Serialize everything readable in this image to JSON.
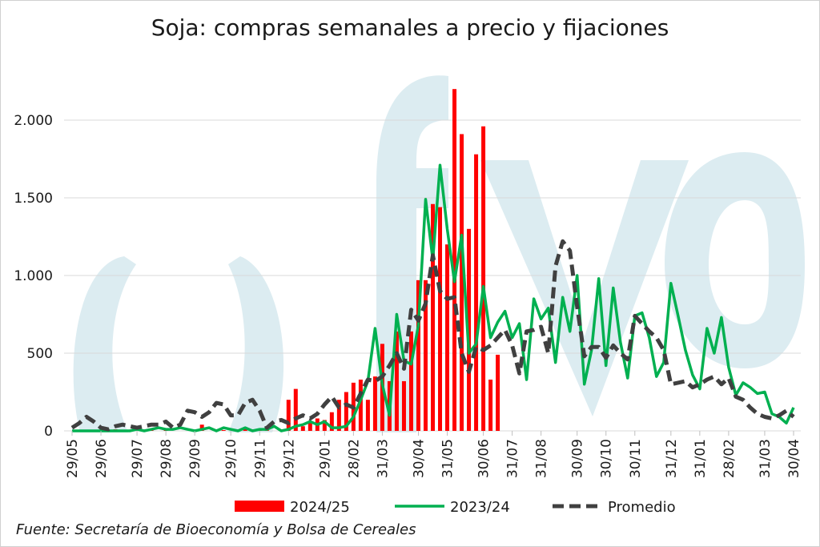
{
  "chart_data": {
    "type": "combo",
    "title": "Soja: compras semanales a precio y fijaciones",
    "source": "Fuente: Secretaría de Bioeconomía y Bolsa de Cereales",
    "categories": [
      "29/05",
      null,
      null,
      null,
      "29/06",
      null,
      null,
      null,
      null,
      "29/07",
      null,
      null,
      null,
      "29/08",
      null,
      null,
      null,
      "29/09",
      null,
      null,
      null,
      null,
      "29/10",
      null,
      null,
      null,
      "29/11",
      null,
      null,
      null,
      "29/12",
      null,
      null,
      null,
      null,
      "29/01",
      null,
      null,
      null,
      "28/02",
      null,
      null,
      null,
      "31/03",
      null,
      null,
      null,
      null,
      "30/04",
      null,
      null,
      null,
      "31/05",
      null,
      null,
      null,
      null,
      "30/06",
      null,
      null,
      null,
      "31/07",
      null,
      null,
      null,
      "31/08",
      null,
      null,
      null,
      null,
      "30/09",
      null,
      null,
      null,
      "30/10",
      null,
      null,
      null,
      "30/11",
      null,
      null,
      null,
      null,
      "31/12",
      null,
      null,
      null,
      "31/01",
      null,
      null,
      null,
      "28/02",
      null,
      null,
      null,
      null,
      "31/03",
      null,
      null,
      null,
      "30/04"
    ],
    "series": [
      {
        "name": "2024/25",
        "type": "bar",
        "color": "#ff0000",
        "values": [
          0,
          0,
          0,
          5,
          0,
          0,
          10,
          0,
          5,
          0,
          0,
          5,
          0,
          10,
          0,
          0,
          0,
          5,
          40,
          0,
          0,
          5,
          0,
          0,
          20,
          10,
          5,
          20,
          0,
          10,
          200,
          270,
          30,
          60,
          80,
          70,
          120,
          200,
          250,
          310,
          330,
          200,
          350,
          560,
          320,
          640,
          320,
          640,
          970,
          970,
          1460,
          1440,
          1200,
          2200,
          1910,
          1300,
          1780,
          1960,
          330,
          490,
          null,
          null,
          null,
          null,
          null,
          null,
          null,
          null,
          null,
          null,
          null,
          null,
          null,
          null,
          null,
          null,
          null,
          null,
          null,
          null,
          null,
          null,
          null,
          null,
          null,
          null,
          null,
          null,
          null,
          null,
          null,
          null,
          null,
          null,
          null,
          null,
          null,
          null,
          null,
          null,
          null
        ]
      },
      {
        "name": "2023/24",
        "type": "line",
        "style": "solid",
        "color": "#00b050",
        "values": [
          0,
          0,
          0,
          0,
          0,
          0,
          0,
          0,
          0,
          10,
          0,
          10,
          20,
          10,
          10,
          20,
          10,
          0,
          10,
          20,
          0,
          20,
          10,
          0,
          20,
          0,
          10,
          10,
          30,
          0,
          10,
          30,
          40,
          60,
          40,
          60,
          20,
          20,
          30,
          90,
          200,
          320,
          660,
          300,
          100,
          750,
          450,
          430,
          680,
          1490,
          1100,
          1710,
          1300,
          960,
          1260,
          500,
          560,
          930,
          600,
          700,
          770,
          600,
          690,
          330,
          850,
          720,
          790,
          440,
          860,
          640,
          1000,
          300,
          520,
          980,
          420,
          920,
          570,
          340,
          740,
          760,
          600,
          350,
          440,
          950,
          740,
          520,
          360,
          270,
          660,
          500,
          730,
          410,
          230,
          310,
          280,
          240,
          250,
          110,
          90,
          50,
          150
        ]
      },
      {
        "name": "Promedio",
        "type": "line",
        "style": "dashed",
        "color": "#404040",
        "values": [
          20,
          50,
          90,
          60,
          20,
          10,
          30,
          40,
          30,
          20,
          30,
          40,
          40,
          60,
          20,
          40,
          130,
          120,
          90,
          120,
          180,
          170,
          100,
          100,
          180,
          200,
          130,
          20,
          60,
          70,
          50,
          80,
          100,
          80,
          110,
          170,
          220,
          150,
          170,
          150,
          240,
          330,
          320,
          350,
          420,
          500,
          400,
          780,
          710,
          820,
          1130,
          900,
          850,
          860,
          500,
          380,
          540,
          520,
          550,
          600,
          650,
          550,
          370,
          640,
          650,
          670,
          500,
          1060,
          1220,
          1160,
          800,
          480,
          540,
          540,
          470,
          550,
          500,
          460,
          740,
          690,
          640,
          600,
          520,
          300,
          310,
          320,
          280,
          300,
          330,
          350,
          300,
          340,
          220,
          200,
          150,
          110,
          90,
          80,
          100,
          130,
          90
        ]
      }
    ],
    "ylim": [
      0,
      2250
    ],
    "yticks": [
      0,
      500,
      {
        "value": 1000,
        "label": "1.000"
      },
      {
        "value": 1500,
        "label": "1.500"
      },
      {
        "value": 2000,
        "label": "2.000"
      }
    ],
    "grid": true,
    "legend": "bottom"
  }
}
